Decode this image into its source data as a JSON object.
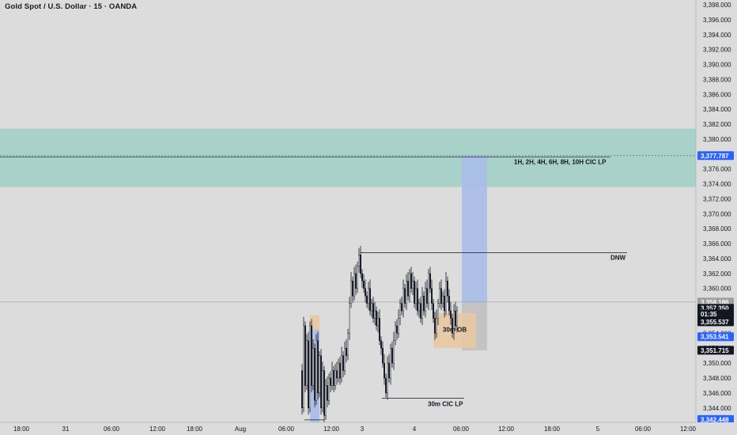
{
  "header": {
    "title": "Gold Spot / U.S. Dollar · 15 · OANDA"
  },
  "chart_data": {
    "type": "candlestick",
    "title": "Gold Spot / U.S. Dollar · 15 · OANDA",
    "ylim": [
      3342,
      3399
    ],
    "y_ticks": [
      "3,398.000",
      "3,396.000",
      "3,394.000",
      "3,392.000",
      "3,390.000",
      "3,388.000",
      "3,386.000",
      "3,384.000",
      "3,382.000",
      "3,380.000",
      "3,378.000",
      "3,376.000",
      "3,374.000",
      "3,372.000",
      "3,370.000",
      "3,368.000",
      "3,366.000",
      "3,364.000",
      "3,362.000",
      "3,360.000",
      "3,358.000",
      "3,356.000",
      "3,354.000",
      "3,352.000",
      "3,350.000",
      "3,348.000",
      "3,346.000",
      "3,344.000",
      "3,342.000"
    ],
    "x_ticks": [
      "18:00",
      "31",
      "06:00",
      "12:00",
      "18:00",
      "Aug",
      "06:00",
      "12:00",
      "3",
      "4",
      "06:00",
      "12:00",
      "18:00",
      "5",
      "06:00",
      "12:00"
    ],
    "price_tags": [
      {
        "value": 3377.787,
        "label": "3,377.787",
        "color": "#2962ff"
      },
      {
        "value": 3358.186,
        "label": "3,358.186",
        "color": "#9e9e9e"
      },
      {
        "value": 3357.35,
        "label": "3,357.350",
        "color": "#131722"
      },
      {
        "value": 3356.6,
        "label": "01:35",
        "color": "#131722"
      },
      {
        "value": 3355.537,
        "label": "3,355.537",
        "color": "#131722"
      },
      {
        "value": 3353.541,
        "label": "3,353.541",
        "color": "#2962ff"
      },
      {
        "value": 3351.715,
        "label": "3,351.715",
        "color": "#131722"
      },
      {
        "value": 3342.448,
        "label": "3,342.448",
        "color": "#2962ff"
      }
    ],
    "zones": [
      {
        "name": "supply-zone",
        "y_top": 3381.4,
        "y_bottom": 3373.6,
        "color": "#a8d2c9"
      }
    ],
    "levels": [
      {
        "name": "cic-level",
        "value": 3377.6,
        "label": "1H, 2H, 4H, 6H, 8H, 10H CIC LP"
      },
      {
        "name": "dnw-level",
        "value": 3364.8,
        "label": "DNW"
      },
      {
        "name": "30m-cic-level",
        "value": 3345.3,
        "label": "30m CIC LP"
      }
    ],
    "ob": {
      "label": "30m OB",
      "y_top": 3356.7,
      "y_bottom": 3352.0
    },
    "position": {
      "entry": 3358.1,
      "target": 3377.787,
      "stop": 3351.715
    },
    "colors": {
      "up": "#131722",
      "down": "#131722",
      "up_fill": "#ffffff",
      "highlight": "#2962ff"
    }
  }
}
